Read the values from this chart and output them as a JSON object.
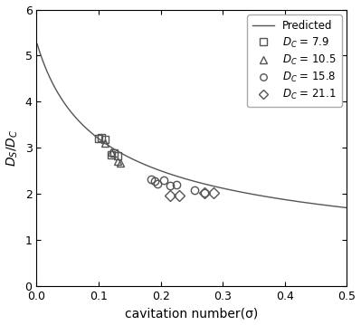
{
  "xlabel": "cavitation number(σ)",
  "ylabel": "$D_S/D_C$",
  "xlim": [
    0,
    0.5
  ],
  "ylim": [
    0,
    6
  ],
  "xticks": [
    0,
    0.1,
    0.2,
    0.3,
    0.4,
    0.5
  ],
  "yticks": [
    0,
    1,
    2,
    3,
    4,
    5,
    6
  ],
  "curve_color": "#555555",
  "curve_C": 1.269,
  "curve_D": 0.0573,
  "series": [
    {
      "label": "$D_C$ = 7.9",
      "marker": "s",
      "x": [
        0.1,
        0.105,
        0.11,
        0.12,
        0.125,
        0.13
      ],
      "y": [
        3.2,
        3.22,
        3.18,
        2.85,
        2.88,
        2.82
      ]
    },
    {
      "label": "$D_C$ = 10.5",
      "marker": "^",
      "x": [
        0.11,
        0.12,
        0.13,
        0.135
      ],
      "y": [
        3.1,
        2.9,
        2.72,
        2.67
      ]
    },
    {
      "label": "$D_C$ = 15.8",
      "marker": "o",
      "x": [
        0.185,
        0.19,
        0.195,
        0.205,
        0.215,
        0.225,
        0.255,
        0.27
      ],
      "y": [
        2.32,
        2.27,
        2.22,
        2.3,
        2.18,
        2.2,
        2.08,
        2.03
      ]
    },
    {
      "label": "$D_C$ = 21.1",
      "marker": "D",
      "x": [
        0.215,
        0.23,
        0.27,
        0.285
      ],
      "y": [
        1.97,
        1.97,
        2.02,
        2.02
      ]
    }
  ],
  "marker_color": "#555555",
  "marker_size": 6,
  "marker_facecolor": "none",
  "line_width": 1.0,
  "legend_fontsize": 8.5,
  "axis_fontsize": 10,
  "tick_fontsize": 9
}
